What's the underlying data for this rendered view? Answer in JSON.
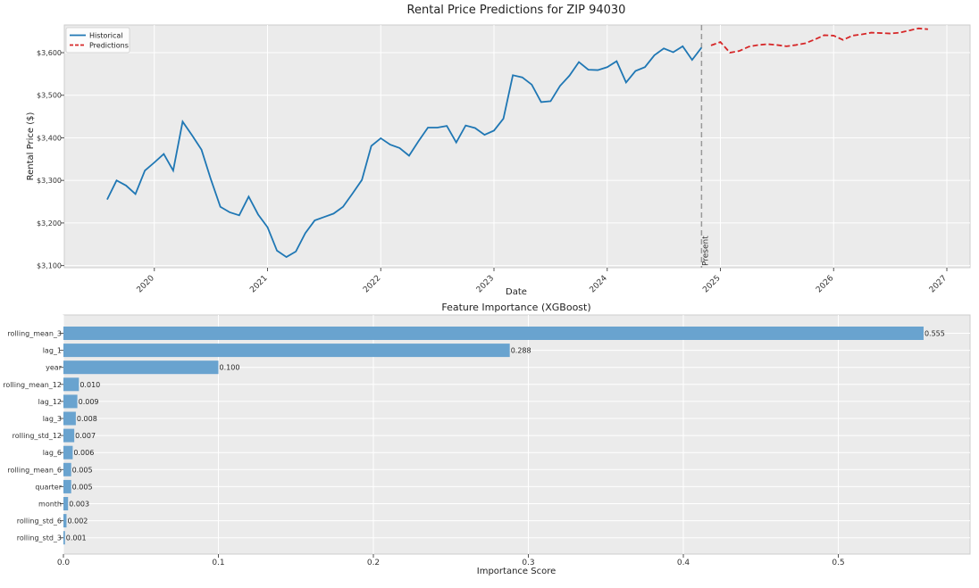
{
  "chart_data": [
    {
      "type": "line",
      "title": "Rental Price Predictions for ZIP 94030",
      "xlabel": "Date",
      "ylabel": "Rental Price ($)",
      "xlim": [
        "2019-03-15",
        "2027-03-15"
      ],
      "ylim": [
        3095,
        3665
      ],
      "x_ticks": [
        "2020",
        "2021",
        "2022",
        "2023",
        "2024",
        "2025",
        "2026",
        "2027"
      ],
      "y_ticks": [
        "$3,100",
        "$3,200",
        "$3,300",
        "$3,400",
        "$3,500",
        "$3,600"
      ],
      "grid": true,
      "legend": "top-left",
      "colors": {
        "historical": "#1f77b4",
        "predictions": "#d62728",
        "present_line": "#999999"
      },
      "present_label": "Present",
      "present_date": "2024-11-01",
      "series": [
        {
          "name": "Historical",
          "style": "solid",
          "x": [
            "2019-08",
            "2019-09",
            "2019-10",
            "2019-11",
            "2019-12",
            "2020-01",
            "2020-02",
            "2020-03",
            "2020-04",
            "2020-05",
            "2020-06",
            "2020-07",
            "2020-08",
            "2020-09",
            "2020-10",
            "2020-11",
            "2020-12",
            "2021-01",
            "2021-02",
            "2021-03",
            "2021-04",
            "2021-05",
            "2021-06",
            "2021-07",
            "2021-08",
            "2021-09",
            "2021-10",
            "2021-11",
            "2021-12",
            "2022-01",
            "2022-02",
            "2022-03",
            "2022-04",
            "2022-05",
            "2022-06",
            "2022-07",
            "2022-08",
            "2022-09",
            "2022-10",
            "2022-11",
            "2022-12",
            "2023-01",
            "2023-02",
            "2023-03",
            "2023-04",
            "2023-05",
            "2023-06",
            "2023-07",
            "2023-08",
            "2023-09",
            "2023-10",
            "2023-11",
            "2023-12",
            "2024-01",
            "2024-02",
            "2024-03",
            "2024-04",
            "2024-05",
            "2024-06",
            "2024-07",
            "2024-08",
            "2024-09",
            "2024-10",
            "2024-11"
          ],
          "values": [
            3255,
            3300,
            3288,
            3268,
            3323,
            3342,
            3362,
            3323,
            3438,
            3406,
            3372,
            3302,
            3238,
            3225,
            3218,
            3262,
            3220,
            3190,
            3135,
            3120,
            3133,
            3176,
            3206,
            3214,
            3222,
            3238,
            3269,
            3301,
            3381,
            3399,
            3384,
            3376,
            3358,
            3392,
            3424,
            3424,
            3428,
            3389,
            3429,
            3423,
            3407,
            3417,
            3445,
            3547,
            3542,
            3525,
            3484,
            3486,
            3522,
            3546,
            3578,
            3560,
            3559,
            3566,
            3580,
            3530,
            3557,
            3566,
            3594,
            3610,
            3601,
            3615,
            3583,
            3612
          ]
        },
        {
          "name": "Predictions",
          "style": "dashed",
          "x": [
            "2024-12",
            "2025-01",
            "2025-02",
            "2025-03",
            "2025-04",
            "2025-05",
            "2025-06",
            "2025-07",
            "2025-08",
            "2025-09",
            "2025-10",
            "2025-11",
            "2025-12",
            "2026-01",
            "2026-02",
            "2026-03",
            "2026-04",
            "2026-05",
            "2026-06",
            "2026-07",
            "2026-08",
            "2026-09",
            "2026-10",
            "2026-11"
          ],
          "values": [
            3617,
            3625,
            3600,
            3604,
            3614,
            3618,
            3620,
            3618,
            3615,
            3618,
            3622,
            3631,
            3641,
            3640,
            3630,
            3640,
            3643,
            3647,
            3646,
            3645,
            3647,
            3652,
            3657,
            3655
          ]
        }
      ]
    },
    {
      "type": "bar",
      "orientation": "horizontal",
      "title": "Feature Importance (XGBoost)",
      "xlabel": "Importance Score",
      "ylabel": "",
      "xlim": [
        0,
        0.585
      ],
      "x_ticks": [
        "0.0",
        "0.1",
        "0.2",
        "0.3",
        "0.4",
        "0.5"
      ],
      "grid": true,
      "colors": {
        "bar": "#69a3cf"
      },
      "categories": [
        "rolling_mean_3",
        "lag_1",
        "year",
        "rolling_mean_12",
        "lag_12",
        "lag_3",
        "rolling_std_12",
        "lag_6",
        "rolling_mean_6",
        "quarter",
        "month",
        "rolling_std_6",
        "rolling_std_3"
      ],
      "values": [
        0.555,
        0.288,
        0.1,
        0.01,
        0.009,
        0.008,
        0.007,
        0.006,
        0.005,
        0.005,
        0.003,
        0.002,
        0.001
      ],
      "value_labels": [
        "0.555",
        "0.288",
        "0.100",
        "0.010",
        "0.009",
        "0.008",
        "0.007",
        "0.006",
        "0.005",
        "0.005",
        "0.003",
        "0.002",
        "0.001"
      ]
    }
  ]
}
